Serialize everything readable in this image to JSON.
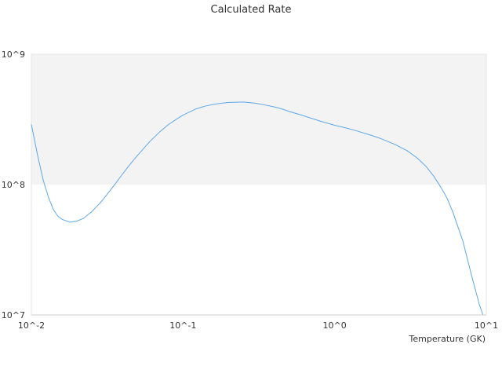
{
  "chart_data": {
    "type": "line",
    "title": "Calculated Rate",
    "xlabel": "Temperature (GK)",
    "ylabel": "",
    "x_scale": "log",
    "y_scale": "log",
    "xlim": [
      0.01,
      10
    ],
    "ylim": [
      10000000,
      1000000000
    ],
    "x_ticks": [
      0.01,
      0.1,
      1,
      10
    ],
    "x_tick_labels": [
      "10^-2",
      "10^-1",
      "10^0",
      "10^1"
    ],
    "y_ticks": [
      10000000,
      100000000,
      1000000000
    ],
    "y_tick_labels": [
      "10^7",
      "10^8",
      "10^9"
    ],
    "grid": false,
    "band_colors": [
      "#ffffff",
      "#f3f3f3"
    ],
    "series": [
      {
        "color": "#5fa8e8",
        "x": [
          0.01,
          0.011,
          0.012,
          0.013,
          0.014,
          0.015,
          0.016,
          0.018,
          0.02,
          0.022,
          0.025,
          0.028,
          0.03,
          0.035,
          0.04,
          0.045,
          0.05,
          0.06,
          0.07,
          0.08,
          0.09,
          0.1,
          0.12,
          0.14,
          0.16,
          0.18,
          0.2,
          0.25,
          0.3,
          0.35,
          0.4,
          0.45,
          0.5,
          0.6,
          0.7,
          0.8,
          0.9,
          1.0,
          1.2,
          1.4,
          1.6,
          1.8,
          2.0,
          2.5,
          3.0,
          3.5,
          4.0,
          4.5,
          5.0,
          5.5,
          6.0,
          7.0,
          8.0,
          9.0,
          9.5
        ],
        "y": [
          289000000,
          167000000,
          107000000,
          79000000,
          64000000,
          57000000,
          54000000,
          51500000,
          52500000,
          55000000,
          62000000,
          71000000,
          78000000,
          98000000,
          121000000,
          144000000,
          167000000,
          212000000,
          253000000,
          288000000,
          316000000,
          341000000,
          378000000,
          400000000,
          413000000,
          421000000,
          427000000,
          430000000,
          421000000,
          407000000,
          394000000,
          380000000,
          364000000,
          342000000,
          323000000,
          307000000,
          295000000,
          285000000,
          271000000,
          258000000,
          246000000,
          236000000,
          226000000,
          203000000,
          182000000,
          160000000,
          138000000,
          116000000,
          96000000,
          79000000,
          62000000,
          37000000,
          20000000,
          12000000,
          10000000
        ]
      }
    ]
  }
}
